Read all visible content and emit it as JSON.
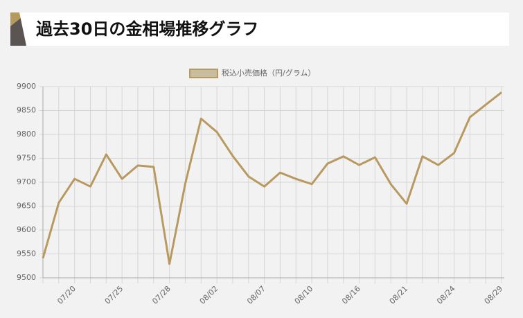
{
  "chart_data": {
    "type": "line",
    "title": "過去30日の金相場推移グラフ",
    "categories": [
      null,
      null,
      "07/20",
      null,
      null,
      "07/25",
      null,
      null,
      "07/28",
      null,
      null,
      "08/02",
      null,
      null,
      "08/07",
      null,
      null,
      "08/10",
      null,
      null,
      "08/16",
      null,
      null,
      "08/21",
      null,
      null,
      "08/24",
      null,
      null,
      "08/29"
    ],
    "series": [
      {
        "name": "税込小売価格（円/グラム）",
        "color": "#b89a60",
        "values": [
          9541,
          9657,
          9707,
          9691,
          9758,
          9707,
          9735,
          9732,
          9529,
          9697,
          9833,
          9805,
          9755,
          9712,
          9691,
          9720,
          9707,
          9696,
          9739,
          9754,
          9736,
          9752,
          9696,
          9655,
          9754,
          9736,
          9761,
          9836,
          9862,
          9888
        ]
      }
    ],
    "ylim": [
      9500,
      9900
    ],
    "yticks": [
      9500,
      9550,
      9600,
      9650,
      9700,
      9750,
      9800,
      9850,
      9900
    ],
    "grid": true
  }
}
